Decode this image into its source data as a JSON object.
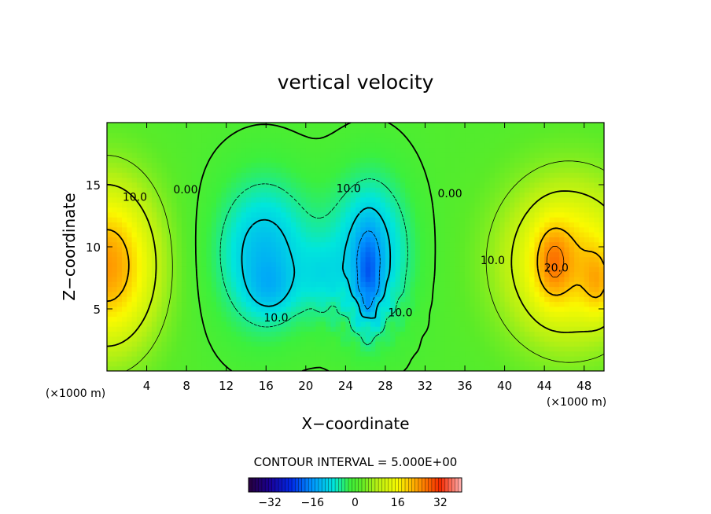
{
  "chart_data": {
    "type": "heatmap",
    "title": "vertical velocity",
    "xlabel": "X−coordinate",
    "ylabel": "Z−coordinate",
    "x_units": "(×1000 m)",
    "z_units": "(×1000 m)",
    "xlim": [
      0,
      50
    ],
    "ylim": [
      0,
      20
    ],
    "x_ticks": [
      4,
      8,
      12,
      16,
      20,
      24,
      28,
      32,
      36,
      40,
      44,
      48
    ],
    "y_ticks": [
      5,
      10,
      15
    ],
    "contour_interval_text": "CONTOUR INTERVAL = 5.000E+00",
    "contour_interval": 5,
    "colorbar": {
      "min": -40,
      "max": 40,
      "ticks": [
        -32,
        -16,
        0,
        16,
        32
      ]
    },
    "contour_labels": [
      {
        "text": "10.0",
        "x": 2.8,
        "z": 13.7
      },
      {
        "text": "0.00",
        "x": 7.9,
        "z": 14.3
      },
      {
        "text": "10.0",
        "x": 17.0,
        "z": 4.0
      },
      {
        "text": "10.0",
        "x": 24.3,
        "z": 14.4
      },
      {
        "text": "0.00",
        "x": 34.5,
        "z": 14.0
      },
      {
        "text": "10.0",
        "x": 38.8,
        "z": 8.6
      },
      {
        "text": "20.0",
        "x": 45.2,
        "z": 8.0
      },
      {
        "text": "10.0",
        "x": 29.5,
        "z": 4.4
      }
    ],
    "features": [
      {
        "sign": "positive",
        "x": 1.0,
        "z": 8.5,
        "peak": 20
      },
      {
        "sign": "negative",
        "x": 16.0,
        "z": 7.0,
        "peak": -14
      },
      {
        "sign": "negative",
        "x": 26.5,
        "z": 8.5,
        "peak": -16
      },
      {
        "sign": "positive",
        "x": 45.0,
        "z": 8.5,
        "peak": 26
      },
      {
        "sign": "positive",
        "x": 49.0,
        "z": 7.0,
        "peak": 24
      }
    ]
  }
}
